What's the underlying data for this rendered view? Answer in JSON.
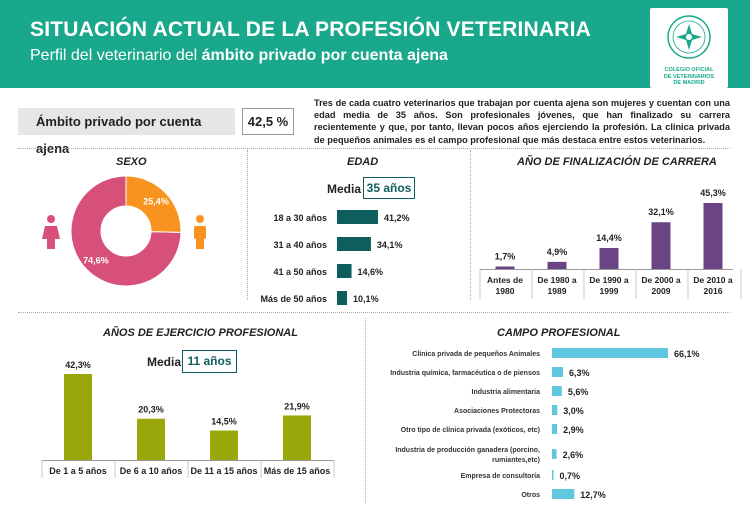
{
  "header": {
    "title": "SITUACIÓN ACTUAL DE LA PROFESIÓN VETERINARIA",
    "subtitle_prefix": "Perfil del veterinario del ",
    "subtitle_bold": "ámbito privado por cuenta ajena",
    "logo_lines": [
      "COLEGIO OFICIAL",
      "DE VETERINARIOS",
      "DE MADRID"
    ]
  },
  "scope": {
    "label": "Ámbito privado por cuenta ajena",
    "value": "42,5 %"
  },
  "intro": "Tres de cada cuatro veterinarios que trabajan por cuenta ajena son mujeres y cuentan con una edad media de 35 años. Son profesionales jóvenes, que han finalizado su carrera recientemente y que, por tanto, llevan pocos años ejerciendo la profesión. La clínica privada de pequeños animales es el campo profesional que más destaca entre estos veterinarios.",
  "colors": {
    "header": "#1aa88c",
    "female": "#d6507a",
    "male": "#f7931e",
    "edad": "#0f5e5e",
    "carrera": "#6b4486",
    "ejercicio": "#9aa70a",
    "campo": "#5fc8df"
  },
  "edad_media": {
    "label": "Media",
    "value": "35 años"
  },
  "ejercicio_media": {
    "label": "Media",
    "value": "11 años"
  },
  "chart_data": [
    {
      "id": "sexo",
      "type": "pie",
      "title": "SEXO",
      "categories": [
        "Mujeres",
        "Hombres"
      ],
      "values": [
        74.6,
        25.4
      ],
      "labels": [
        "74,6%",
        "25,4%"
      ]
    },
    {
      "id": "edad",
      "type": "bar",
      "title": "EDAD",
      "orientation": "horizontal",
      "categories": [
        "18 a 30 años",
        "31 a 40 años",
        "41 a 50 años",
        "Más de 50 años"
      ],
      "values": [
        41.2,
        34.1,
        14.6,
        10.1
      ],
      "labels": [
        "41,2%",
        "34,1%",
        "14,6%",
        "10,1%"
      ]
    },
    {
      "id": "carrera",
      "type": "bar",
      "title": "AÑO DE  FINALIZACIÓN DE CARRERA",
      "categories": [
        [
          "Antes de",
          "1980"
        ],
        [
          "De 1980 a",
          "1989"
        ],
        [
          "De 1990 a",
          "1999"
        ],
        [
          "De 2000 a",
          "2009"
        ],
        [
          "De 2010 a",
          "2016"
        ]
      ],
      "values": [
        1.7,
        4.9,
        14.4,
        32.1,
        45.3
      ],
      "labels": [
        "1,7%",
        "4,9%",
        "14,4%",
        "32,1%",
        "45,3%"
      ]
    },
    {
      "id": "ejercicio",
      "type": "bar",
      "title": "AÑOS DE EJERCICIO PROFESIONAL",
      "categories": [
        "De 1 a 5 años",
        "De 6 a 10 años",
        "De 11 a 15 años",
        "Más de 15 años"
      ],
      "values": [
        42.3,
        20.3,
        14.5,
        21.9
      ],
      "labels": [
        "42,3%",
        "20,3%",
        "14,5%",
        "21,9%"
      ]
    },
    {
      "id": "campo",
      "type": "bar",
      "title": "CAMPO PROFESIONAL",
      "orientation": "horizontal",
      "categories": [
        [
          "Clínica privada de pequeños Animales"
        ],
        [
          "Industria química, farmacéutica o de piensos"
        ],
        [
          "Industria alimentaria"
        ],
        [
          "Asociaciones Protectoras"
        ],
        [
          "Otro tipo de clínica privada (exóticos, etc)"
        ],
        [
          "Industria de producción ganadera (porcino,",
          "rumiantes,etc)"
        ],
        [
          "Empresa de consultoría"
        ],
        [
          "Otros"
        ]
      ],
      "values": [
        66.1,
        6.3,
        5.6,
        3.0,
        2.9,
        2.6,
        0.7,
        12.7
      ],
      "labels": [
        "66,1%",
        "6,3%",
        "5,6%",
        "3,0%",
        "2,9%",
        "2,6%",
        "0,7%",
        "12,7%"
      ]
    }
  ]
}
